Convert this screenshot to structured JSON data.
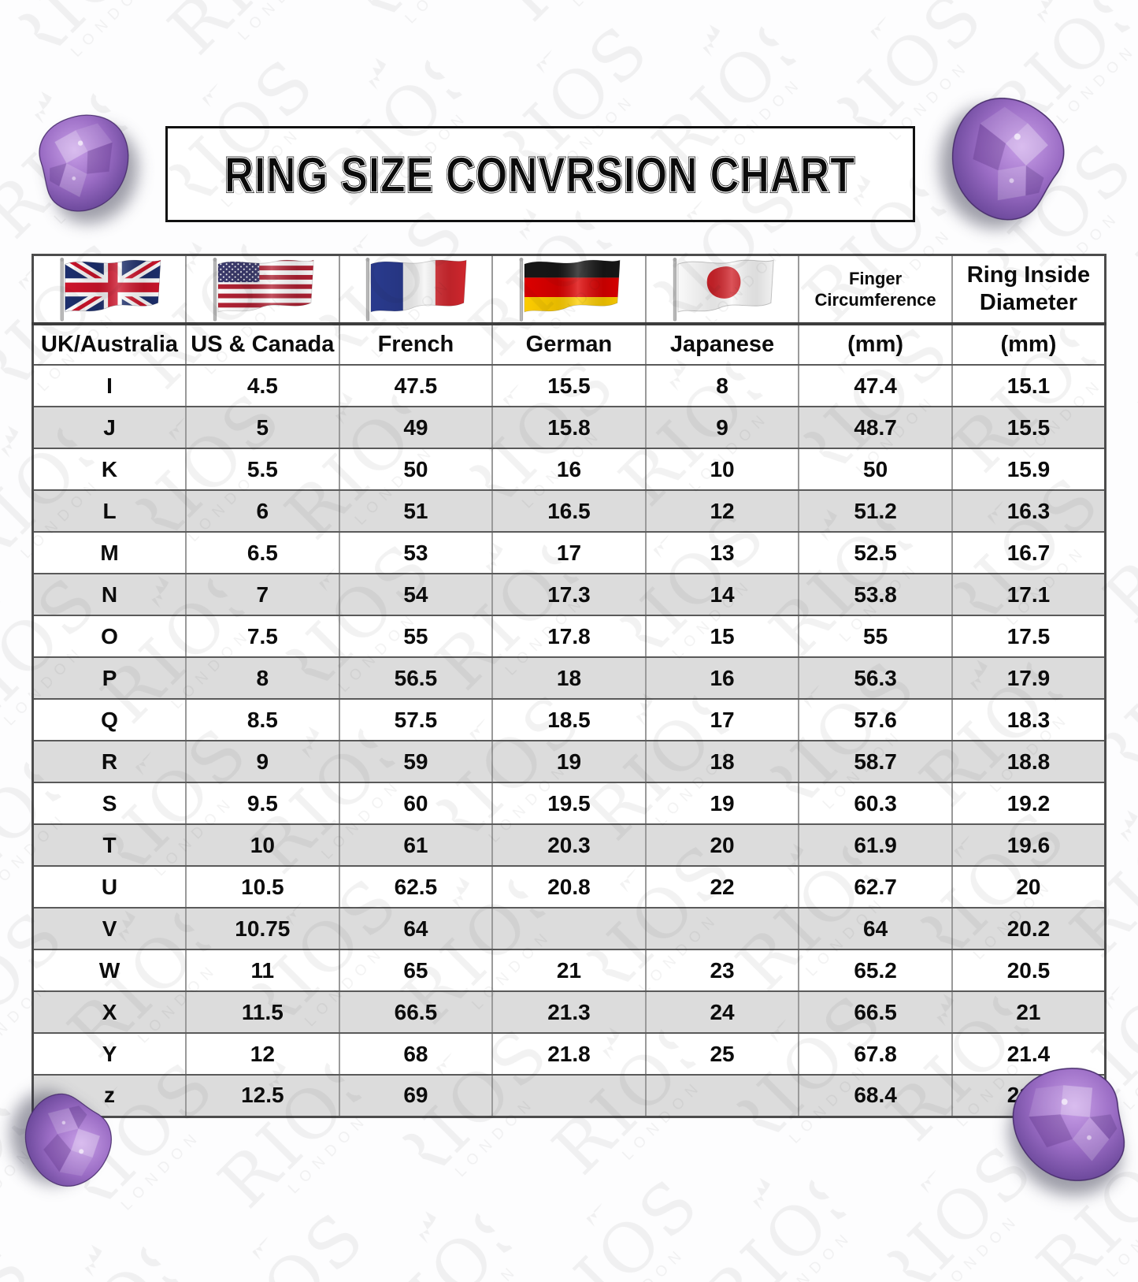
{
  "title": "RING SIZE CONVRSION CHART",
  "watermark": {
    "brand": "RIOS",
    "subtext": "LONDON"
  },
  "header": {
    "finger_circumference": {
      "line1": "Finger",
      "line2": "Circumference"
    },
    "ring_inside_diameter": {
      "line1": "Ring Inside",
      "line2": "Diameter"
    },
    "labels": [
      "UK/Australia",
      "US & Canada",
      "French",
      "German",
      "Japanese",
      "(mm)",
      "(mm)"
    ],
    "flag_icons": [
      "uk-flag",
      "us-flag",
      "france-flag",
      "germany-flag",
      "japan-flag"
    ]
  },
  "chart_data": {
    "type": "table",
    "title": "RING SIZE CONVRSION CHART",
    "columns": [
      "UK/Australia",
      "US & Canada",
      "French",
      "German",
      "Japanese",
      "Finger Circumference (mm)",
      "Ring Inside Diameter (mm)"
    ],
    "rows": [
      [
        "I",
        "4.5",
        "47.5",
        "15.5",
        "8",
        "47.4",
        "15.1"
      ],
      [
        "J",
        "5",
        "49",
        "15.8",
        "9",
        "48.7",
        "15.5"
      ],
      [
        "K",
        "5.5",
        "50",
        "16",
        "10",
        "50",
        "15.9"
      ],
      [
        "L",
        "6",
        "51",
        "16.5",
        "12",
        "51.2",
        "16.3"
      ],
      [
        "M",
        "6.5",
        "53",
        "17",
        "13",
        "52.5",
        "16.7"
      ],
      [
        "N",
        "7",
        "54",
        "17.3",
        "14",
        "53.8",
        "17.1"
      ],
      [
        "O",
        "7.5",
        "55",
        "17.8",
        "15",
        "55",
        "17.5"
      ],
      [
        "P",
        "8",
        "56.5",
        "18",
        "16",
        "56.3",
        "17.9"
      ],
      [
        "Q",
        "8.5",
        "57.5",
        "18.5",
        "17",
        "57.6",
        "18.3"
      ],
      [
        "R",
        "9",
        "59",
        "19",
        "18",
        "58.7",
        "18.8"
      ],
      [
        "S",
        "9.5",
        "60",
        "19.5",
        "19",
        "60.3",
        "19.2"
      ],
      [
        "T",
        "10",
        "61",
        "20.3",
        "20",
        "61.9",
        "19.6"
      ],
      [
        "U",
        "10.5",
        "62.5",
        "20.8",
        "22",
        "62.7",
        "20"
      ],
      [
        "V",
        "10.75",
        "64",
        "",
        "",
        "64",
        "20.2"
      ],
      [
        "W",
        "11",
        "65",
        "21",
        "23",
        "65.2",
        "20.5"
      ],
      [
        "X",
        "11.5",
        "66.5",
        "21.3",
        "24",
        "66.5",
        "21"
      ],
      [
        "Y",
        "12",
        "68",
        "21.8",
        "25",
        "67.8",
        "21.4"
      ],
      [
        "z",
        "12.5",
        "69",
        "",
        "",
        "68.4",
        "21.8"
      ]
    ]
  },
  "colors": {
    "row_alt": "#dcdcdc",
    "border_dark": "#4c4c4c",
    "amethyst_purple": "#8a5fb5",
    "uk_navy": "#1d2f6e",
    "uk_red": "#cf142b",
    "us_red": "#b22234",
    "us_navy": "#3c3b6e",
    "france_blue": "#2a3b8f",
    "france_red": "#d7282f",
    "germany_black": "#171717",
    "germany_red": "#dd0000",
    "germany_gold": "#ffce00",
    "japan_red": "#d2232a"
  }
}
